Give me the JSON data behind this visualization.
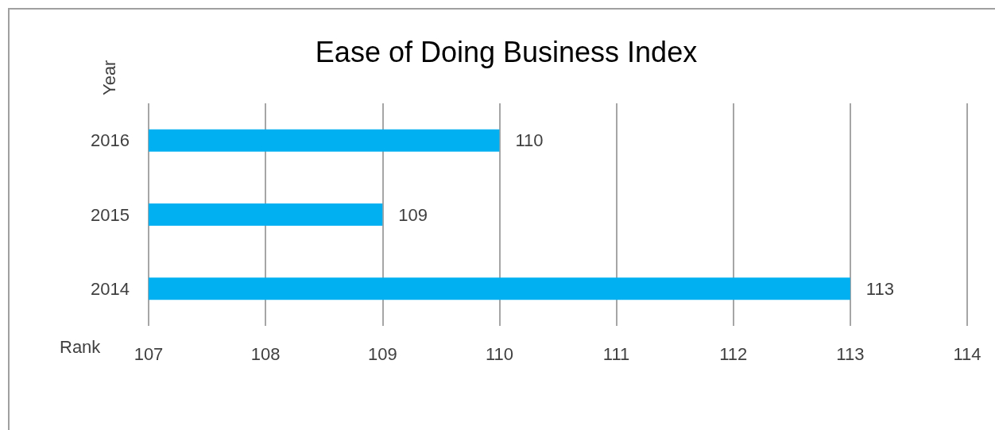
{
  "chart_data": {
    "type": "bar",
    "orientation": "horizontal",
    "title": "Ease of Doing Business Index",
    "xlabel": "Rank",
    "ylabel": "Year",
    "categories": [
      "2016",
      "2015",
      "2014"
    ],
    "values": [
      110,
      109,
      113
    ],
    "color": "#00b0f0",
    "xlim": [
      107,
      114
    ],
    "xticks": [
      107,
      108,
      109,
      110,
      111,
      112,
      113,
      114
    ],
    "grid": "x",
    "data_labels": true
  }
}
